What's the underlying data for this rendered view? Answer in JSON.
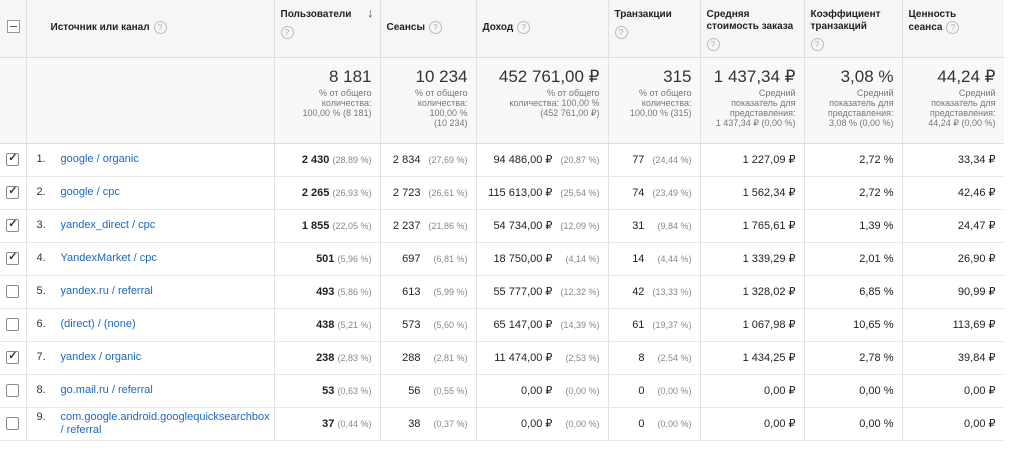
{
  "header": {
    "source": "Источник или канал",
    "users": "Пользователи",
    "sessions": "Сеансы",
    "revenue": "Доход",
    "transactions": "Транзакции",
    "aov_line1": "Средняя",
    "aov_line2": "стоимость заказа",
    "conv_line1": "Коэффициент",
    "conv_line2": "транзакций",
    "value_line1": "Ценность",
    "value_line2": "сеанса",
    "help": "?"
  },
  "totals": {
    "users": {
      "value": "8 181",
      "sub1": "% от общего",
      "sub2": "количества:",
      "sub3": "100,00 % (8 181)"
    },
    "sessions": {
      "value": "10 234",
      "sub1": "% от общего",
      "sub2": "количества:",
      "sub3": "100,00 %",
      "sub4": "(10 234)"
    },
    "revenue": {
      "value": "452 761,00 ₽",
      "sub1": "% от общего",
      "sub2": "количества: 100,00 %",
      "sub3": "(452 761,00 ₽)"
    },
    "transactions": {
      "value": "315",
      "sub1": "% от общего",
      "sub2": "количества:",
      "sub3": "100,00 % (315)"
    },
    "aov": {
      "value": "1 437,34 ₽",
      "sub1": "Средний",
      "sub2": "показатель для",
      "sub3": "представления:",
      "sub4": "1 437,34 ₽ (0,00 %)"
    },
    "conv": {
      "value": "3,08 %",
      "sub1": "Средний",
      "sub2": "показатель для",
      "sub3": "представления:",
      "sub4": "3,08 % (0,00 %)"
    },
    "value": {
      "value": "44,24 ₽",
      "sub1": "Средний",
      "sub2": "показатель для",
      "sub3": "представления:",
      "sub4": "44,24 ₽ (0,00 %)"
    }
  },
  "rows": [
    {
      "checked": true,
      "idx": "1.",
      "source": "google / organic",
      "users": "2 430",
      "users_pct": "(28,89 %)",
      "sessions": "2 834",
      "sessions_pct": "(27,69 %)",
      "revenue": "94 486,00 ₽",
      "revenue_pct": "(20,87 %)",
      "trans": "77",
      "trans_pct": "(24,44 %)",
      "aov": "1 227,09 ₽",
      "conv": "2,72 %",
      "value": "33,34 ₽"
    },
    {
      "checked": true,
      "idx": "2.",
      "source": "google / cpc",
      "users": "2 265",
      "users_pct": "(26,93 %)",
      "sessions": "2 723",
      "sessions_pct": "(26,61 %)",
      "revenue": "115 613,00 ₽",
      "revenue_pct": "(25,54 %)",
      "trans": "74",
      "trans_pct": "(23,49 %)",
      "aov": "1 562,34 ₽",
      "conv": "2,72 %",
      "value": "42,46 ₽"
    },
    {
      "checked": true,
      "idx": "3.",
      "source": "yandex_direct / cpc",
      "users": "1 855",
      "users_pct": "(22,05 %)",
      "sessions": "2 237",
      "sessions_pct": "(21,86 %)",
      "revenue": "54 734,00 ₽",
      "revenue_pct": "(12,09 %)",
      "trans": "31",
      "trans_pct": "(9,84 %)",
      "aov": "1 765,61 ₽",
      "conv": "1,39 %",
      "value": "24,47 ₽"
    },
    {
      "checked": true,
      "idx": "4.",
      "source": "YandexMarket / cpc",
      "users": "501",
      "users_pct": "(5,96 %)",
      "sessions": "697",
      "sessions_pct": "(6,81 %)",
      "revenue": "18 750,00 ₽",
      "revenue_pct": "(4,14 %)",
      "trans": "14",
      "trans_pct": "(4,44 %)",
      "aov": "1 339,29 ₽",
      "conv": "2,01 %",
      "value": "26,90 ₽"
    },
    {
      "checked": false,
      "idx": "5.",
      "source": "yandex.ru / referral",
      "users": "493",
      "users_pct": "(5,86 %)",
      "sessions": "613",
      "sessions_pct": "(5,99 %)",
      "revenue": "55 777,00 ₽",
      "revenue_pct": "(12,32 %)",
      "trans": "42",
      "trans_pct": "(13,33 %)",
      "aov": "1 328,02 ₽",
      "conv": "6,85 %",
      "value": "90,99 ₽"
    },
    {
      "checked": false,
      "idx": "6.",
      "source": "(direct) / (none)",
      "users": "438",
      "users_pct": "(5,21 %)",
      "sessions": "573",
      "sessions_pct": "(5,60 %)",
      "revenue": "65 147,00 ₽",
      "revenue_pct": "(14,39 %)",
      "trans": "61",
      "trans_pct": "(19,37 %)",
      "aov": "1 067,98 ₽",
      "conv": "10,65 %",
      "value": "113,69 ₽"
    },
    {
      "checked": true,
      "idx": "7.",
      "source": "yandex / organic",
      "users": "238",
      "users_pct": "(2,83 %)",
      "sessions": "288",
      "sessions_pct": "(2,81 %)",
      "revenue": "11 474,00 ₽",
      "revenue_pct": "(2,53 %)",
      "trans": "8",
      "trans_pct": "(2,54 %)",
      "aov": "1 434,25 ₽",
      "conv": "2,78 %",
      "value": "39,84 ₽"
    },
    {
      "checked": false,
      "idx": "8.",
      "source": "go.mail.ru / referral",
      "users": "53",
      "users_pct": "(0,63 %)",
      "sessions": "56",
      "sessions_pct": "(0,55 %)",
      "revenue": "0,00 ₽",
      "revenue_pct": "(0,00 %)",
      "trans": "0",
      "trans_pct": "(0,00 %)",
      "aov": "0,00 ₽",
      "conv": "0,00 %",
      "value": "0,00 ₽"
    },
    {
      "checked": false,
      "idx": "9.",
      "source": "com.google.android.googlequicksearchbox / referral",
      "users": "37",
      "users_pct": "(0,44 %)",
      "sessions": "38",
      "sessions_pct": "(0,37 %)",
      "revenue": "0,00 ₽",
      "revenue_pct": "(0,00 %)",
      "trans": "0",
      "trans_pct": "(0,00 %)",
      "aov": "0,00 ₽",
      "conv": "0,00 %",
      "value": "0,00 ₽"
    }
  ]
}
